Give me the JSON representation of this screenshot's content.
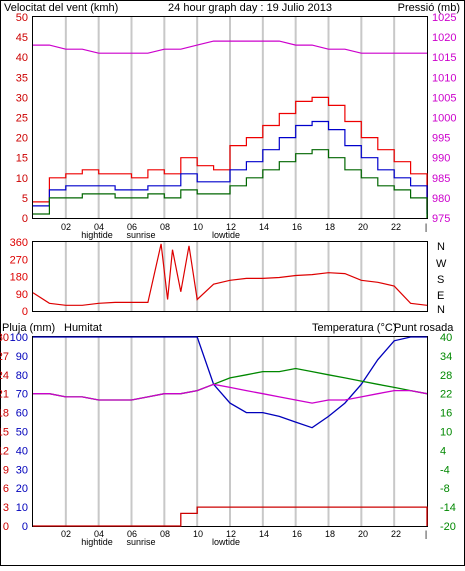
{
  "colors": {
    "frame": "#000000",
    "grid": "#c8c8c8",
    "wind_label": "#cc0000",
    "pressure_label": "#cc00cc",
    "gust": "#ee0000",
    "avg": "#0000cc",
    "low": "#006600",
    "direction": "#dd0000",
    "rain": "#cc0000",
    "humidity": "#0000bb",
    "temperature": "#008800",
    "dewpoint": "#cc00cc",
    "pressure": "#cc00cc"
  },
  "header": {
    "left": "Velocitat del vent (kmh)",
    "center": "24 hour graph day : 19 Julio 2013",
    "right": "Pressió (mb)"
  },
  "panel3_header": {
    "rain": "Pluja (mm)",
    "humidity": "Humitat",
    "temperature": "Temperatura (°C)",
    "dewpoint": "Punt rosada"
  },
  "x_axis": {
    "hours": [
      "02",
      "04",
      "06",
      "08",
      "10",
      "12",
      "14",
      "16",
      "18",
      "20",
      "22"
    ],
    "end_tick": "|",
    "tide_labels": {
      "hightide": "hightide",
      "sunrise": "sunrise",
      "lowtide": "lowtide"
    }
  },
  "direction_axis": {
    "ticks": [
      "360",
      "270",
      "180",
      "90",
      "0"
    ],
    "cardinals": [
      "N",
      "W",
      "S",
      "E",
      "N"
    ]
  },
  "chart_data": [
    {
      "type": "line",
      "title": "24 hour graph day : 19 Julio 2013",
      "ylabel": "Velocitat del vent (kmh)",
      "y2label": "Pressió (mb)",
      "ylim": [
        0,
        50
      ],
      "y2lim": [
        975,
        1025
      ],
      "yticks": [
        "0",
        "5",
        "10",
        "15",
        "20",
        "25",
        "30",
        "35",
        "40",
        "45",
        "50"
      ],
      "y2ticks": [
        "975",
        "980",
        "985",
        "990",
        "995",
        "1000",
        "1005",
        "1010",
        "1015",
        "1020",
        "1025"
      ],
      "x": [
        0,
        1,
        2,
        3,
        4,
        5,
        6,
        7,
        8,
        9,
        10,
        11,
        12,
        13,
        14,
        15,
        16,
        17,
        18,
        19,
        20,
        21,
        22,
        23,
        24
      ],
      "series": [
        {
          "key": "gust",
          "values": [
            4,
            10,
            11,
            12,
            11,
            11,
            10,
            12,
            11,
            15,
            13,
            12,
            18,
            20,
            23,
            26,
            29,
            30,
            28,
            24,
            20,
            17,
            14,
            11,
            2
          ]
        },
        {
          "key": "avg",
          "values": [
            3,
            7,
            8,
            8,
            8,
            7,
            7,
            8,
            8,
            11,
            9,
            9,
            12,
            14,
            17,
            20,
            23,
            24,
            22,
            18,
            15,
            12,
            10,
            8,
            1
          ]
        },
        {
          "key": "low",
          "values": [
            1,
            5,
            5,
            6,
            6,
            5,
            5,
            6,
            5,
            7,
            6,
            6,
            8,
            10,
            12,
            14,
            16,
            17,
            15,
            12,
            10,
            8,
            7,
            5,
            0
          ]
        },
        {
          "key": "pressure",
          "values": [
            1018,
            1018,
            1017,
            1017,
            1016,
            1016,
            1016,
            1016,
            1017,
            1017,
            1018,
            1019,
            1019,
            1019,
            1019,
            1019,
            1018,
            1018,
            1017,
            1017,
            1016,
            1016,
            1016,
            1016,
            1016
          ]
        }
      ]
    },
    {
      "type": "line",
      "ylabel": "",
      "ylim": [
        0,
        360
      ],
      "x": [
        0,
        1,
        2,
        3,
        4,
        5,
        6,
        7,
        7.8,
        8.2,
        8.5,
        9,
        9.5,
        10,
        11,
        12,
        13,
        14,
        15,
        16,
        17,
        18,
        19,
        20,
        21,
        22,
        23,
        24
      ],
      "series": [
        {
          "key": "direction",
          "values": [
            95,
            40,
            30,
            30,
            40,
            45,
            45,
            45,
            350,
            60,
            320,
            100,
            340,
            60,
            140,
            160,
            170,
            170,
            175,
            185,
            190,
            200,
            195,
            160,
            150,
            130,
            40,
            30
          ]
        }
      ]
    },
    {
      "type": "line",
      "ylabel": "Pluja (mm)",
      "y2label": "Temperatura (°C)",
      "ylim": [
        0,
        30
      ],
      "y2lim": [
        -20,
        40
      ],
      "yticks": [
        "0",
        "3",
        "6",
        "9",
        "12",
        "15",
        "18",
        "21",
        "24",
        "27",
        "30"
      ],
      "yticks_humidity": [
        "0",
        "10",
        "20",
        "30",
        "40",
        "50",
        "60",
        "70",
        "80",
        "90",
        "100"
      ],
      "y2ticks": [
        "-20",
        "-14",
        "-8",
        "-4",
        "4",
        "10",
        "16",
        "22",
        "28",
        "34",
        "40"
      ],
      "x": [
        0,
        1,
        2,
        3,
        4,
        5,
        6,
        7,
        8,
        9,
        10,
        11,
        12,
        13,
        14,
        15,
        16,
        17,
        18,
        19,
        20,
        21,
        22,
        23,
        24
      ],
      "series": [
        {
          "key": "rain",
          "values": [
            0,
            0,
            0,
            0,
            0,
            0,
            0,
            0,
            0,
            2,
            3,
            3,
            3,
            3,
            3,
            3,
            3,
            3,
            3,
            3,
            3,
            3,
            3,
            3,
            0
          ]
        },
        {
          "key": "humidity",
          "values": [
            100,
            100,
            100,
            100,
            100,
            100,
            100,
            100,
            100,
            100,
            100,
            75,
            65,
            60,
            60,
            58,
            55,
            52,
            58,
            65,
            75,
            88,
            98,
            100,
            100
          ]
        },
        {
          "key": "temperature",
          "values": [
            22,
            22,
            21,
            21,
            20,
            20,
            20,
            21,
            22,
            22,
            23,
            25,
            27,
            28,
            29,
            29,
            30,
            29,
            28,
            27,
            26,
            25,
            24,
            23,
            22
          ]
        },
        {
          "key": "dewpoint",
          "values": [
            22,
            22,
            21,
            21,
            20,
            20,
            20,
            21,
            22,
            22,
            23,
            25,
            24,
            23,
            22,
            21,
            20,
            19,
            20,
            20,
            21,
            22,
            23,
            23,
            22
          ]
        }
      ]
    }
  ]
}
